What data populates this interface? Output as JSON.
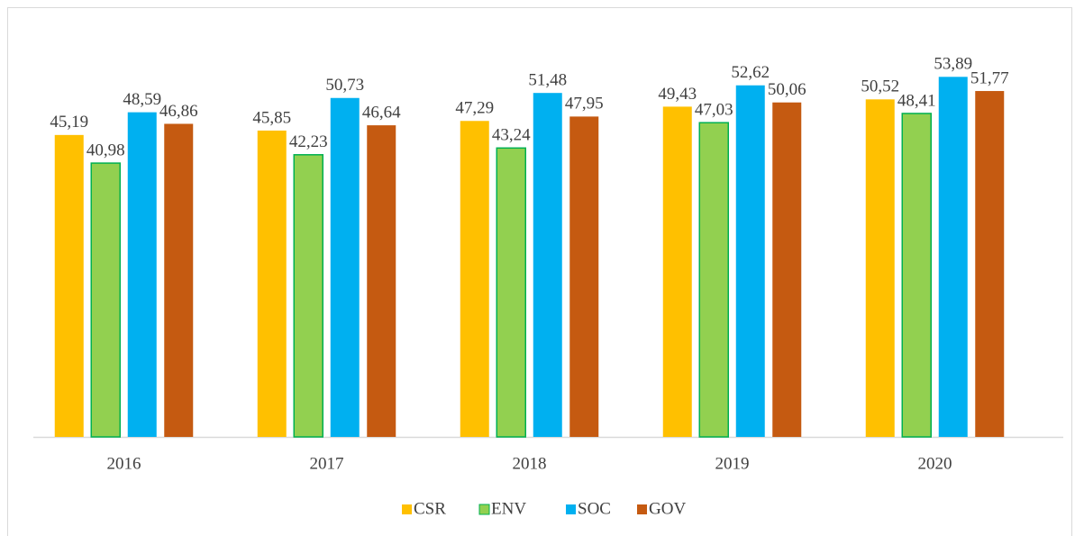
{
  "chart_data": {
    "type": "bar",
    "categories": [
      "2016",
      "2017",
      "2018",
      "2019",
      "2020"
    ],
    "series": [
      {
        "name": "CSR",
        "color": "#ffc000",
        "values": [
          45.19,
          45.85,
          47.29,
          49.43,
          50.52
        ],
        "value_labels": [
          "45,19",
          "45,85",
          "47,29",
          "49,43",
          "50,52"
        ]
      },
      {
        "name": "ENV",
        "color": "#92d050",
        "values": [
          40.98,
          42.23,
          43.24,
          47.03,
          48.41
        ],
        "value_labels": [
          "40,98",
          "42,23",
          "43,24",
          "47,03",
          "48,41"
        ]
      },
      {
        "name": "SOC",
        "color": "#00b0f0",
        "values": [
          48.59,
          50.73,
          51.48,
          52.62,
          53.89
        ],
        "value_labels": [
          "48,59",
          "50,73",
          "51,48",
          "52,62",
          "53,89"
        ]
      },
      {
        "name": "GOV",
        "color": "#c55a11",
        "values": [
          46.86,
          46.64,
          47.95,
          50.06,
          51.77
        ],
        "value_labels": [
          "46,86",
          "46,64",
          "47,95",
          "50,06",
          "51,77"
        ]
      }
    ],
    "ylim": [
      0,
      60
    ],
    "legend": "bottom"
  }
}
